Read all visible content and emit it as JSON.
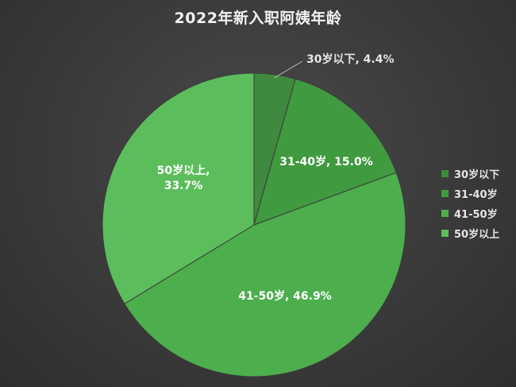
{
  "chart_data": {
    "type": "pie",
    "title": "2022年新入职阿姨年龄",
    "slices": [
      {
        "label": "30岁以下",
        "value": 4.4,
        "value_label": "4.4%",
        "data_label": "30岁以下, 4.4%",
        "color": "#3f8a3f"
      },
      {
        "label": "31-40岁",
        "value": 15.0,
        "value_label": "15.0%",
        "data_label": "31-40岁, 15.0%",
        "color": "#409a40"
      },
      {
        "label": "41-50岁",
        "value": 46.9,
        "value_label": "46.9%",
        "data_label": "41-50岁, 46.9%",
        "color": "#4cae4c"
      },
      {
        "label": "50岁以上",
        "value": 33.7,
        "value_label": "33.7%",
        "data_label_lines": [
          "50岁以上,",
          "33.7%"
        ],
        "color": "#5cbd5c"
      }
    ],
    "legend_position": "right",
    "slice_border_color": "#3a3a3a",
    "label_color": "#ffffff"
  }
}
